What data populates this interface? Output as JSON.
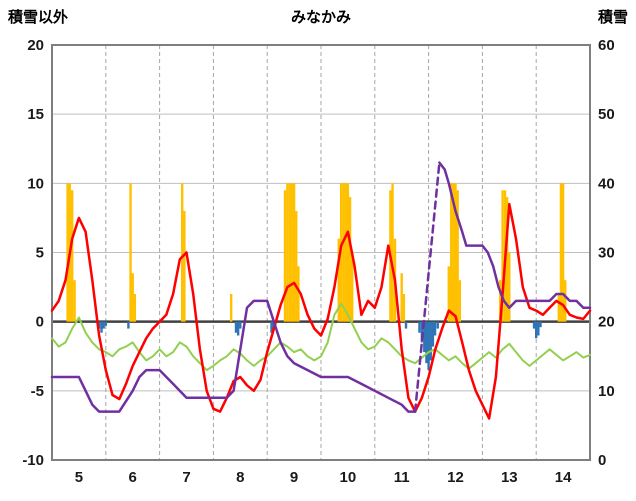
{
  "header": {
    "left_label": "積雪以外",
    "title": "みなかみ",
    "right_label": "積雪"
  },
  "chart_data": {
    "type": "combo",
    "title": "みなかみ",
    "x_axis": {
      "start": 5,
      "end": 15,
      "day_labels": [
        "5",
        "6",
        "7",
        "8",
        "9",
        "10",
        "11",
        "12",
        "13",
        "14"
      ],
      "gridline_days": [
        6,
        7,
        8,
        9,
        10,
        11,
        12,
        13,
        14
      ]
    },
    "left_axis": {
      "label": "積雪以外",
      "min": -10,
      "max": 20,
      "ticks": [
        20,
        15,
        10,
        5,
        0,
        -5,
        -10
      ]
    },
    "right_axis": {
      "label": "積雪",
      "min": 0,
      "max": 60,
      "ticks": [
        60,
        50,
        40,
        30,
        20,
        10,
        0
      ]
    },
    "grid": {
      "h_color": "#BFBFBF",
      "v_color": "#A6A6A6",
      "zero_color": "#404040",
      "frame_color": "#7F7F7F"
    },
    "series": {
      "orange_bars": {
        "type": "bar",
        "axis": "left",
        "color": "#FFC000",
        "bar_width": 2.4,
        "points": [
          [
            5.29,
            10
          ],
          [
            5.33,
            10
          ],
          [
            5.375,
            9.5
          ],
          [
            5.42,
            3
          ],
          [
            6.46,
            10
          ],
          [
            6.5,
            3.5
          ],
          [
            6.54,
            2
          ],
          [
            7.42,
            10
          ],
          [
            7.46,
            8
          ],
          [
            8.33,
            2
          ],
          [
            9.33,
            9.5
          ],
          [
            9.375,
            10
          ],
          [
            9.42,
            10
          ],
          [
            9.46,
            10
          ],
          [
            9.5,
            10
          ],
          [
            9.54,
            8
          ],
          [
            9.58,
            4
          ],
          [
            10.33,
            6
          ],
          [
            10.375,
            10
          ],
          [
            10.42,
            10
          ],
          [
            10.46,
            10
          ],
          [
            10.5,
            10
          ],
          [
            10.54,
            9
          ],
          [
            10.58,
            5
          ],
          [
            11.29,
            9.5
          ],
          [
            11.33,
            10
          ],
          [
            11.375,
            6
          ],
          [
            11.5,
            3.5
          ],
          [
            11.54,
            2
          ],
          [
            12.375,
            4
          ],
          [
            12.42,
            10
          ],
          [
            12.46,
            10
          ],
          [
            12.5,
            10
          ],
          [
            12.54,
            9.5
          ],
          [
            12.58,
            3
          ],
          [
            13.33,
            3
          ],
          [
            13.375,
            9.5
          ],
          [
            13.42,
            9.5
          ],
          [
            13.46,
            9
          ],
          [
            13.5,
            5
          ],
          [
            14.42,
            2
          ],
          [
            14.46,
            10
          ],
          [
            14.5,
            10
          ],
          [
            14.54,
            3
          ]
        ]
      },
      "blue_bars": {
        "type": "bar",
        "axis": "left",
        "color": "#2E75B6",
        "bar_width": 2.4,
        "points": [
          [
            5.875,
            -0.5
          ],
          [
            5.92,
            -0.8
          ],
          [
            5.96,
            -0.5
          ],
          [
            6.0,
            -0.3
          ],
          [
            6.42,
            -0.5
          ],
          [
            8.42,
            -0.8
          ],
          [
            8.46,
            -1.0
          ],
          [
            8.5,
            -0.5
          ],
          [
            9.08,
            -0.8
          ],
          [
            9.12,
            -0.5
          ],
          [
            11.58,
            -0.5
          ],
          [
            11.83,
            -0.8
          ],
          [
            11.875,
            -1.5
          ],
          [
            11.92,
            -2.2
          ],
          [
            11.96,
            -3.0
          ],
          [
            12.0,
            -3.5
          ],
          [
            12.04,
            -2.8
          ],
          [
            12.08,
            -1.8
          ],
          [
            12.12,
            -1.0
          ],
          [
            12.17,
            -0.5
          ],
          [
            13.96,
            -0.5
          ],
          [
            14.0,
            -1.2
          ],
          [
            14.04,
            -1.0
          ],
          [
            14.08,
            -0.4
          ]
        ]
      },
      "green_line": {
        "type": "line",
        "axis": "left",
        "color": "#92D050",
        "width": 2,
        "points": [
          [
            5.0,
            -1.2
          ],
          [
            5.125,
            -1.8
          ],
          [
            5.25,
            -1.5
          ],
          [
            5.375,
            -0.5
          ],
          [
            5.5,
            0.3
          ],
          [
            5.625,
            -0.8
          ],
          [
            5.75,
            -1.5
          ],
          [
            5.875,
            -2.0
          ],
          [
            6.0,
            -2.2
          ],
          [
            6.125,
            -2.5
          ],
          [
            6.25,
            -2.0
          ],
          [
            6.375,
            -1.8
          ],
          [
            6.5,
            -1.5
          ],
          [
            6.625,
            -2.2
          ],
          [
            6.75,
            -2.8
          ],
          [
            6.875,
            -2.5
          ],
          [
            7.0,
            -2.0
          ],
          [
            7.125,
            -2.5
          ],
          [
            7.25,
            -2.2
          ],
          [
            7.375,
            -1.5
          ],
          [
            7.5,
            -1.8
          ],
          [
            7.625,
            -2.5
          ],
          [
            7.75,
            -3.0
          ],
          [
            7.875,
            -3.5
          ],
          [
            8.0,
            -3.2
          ],
          [
            8.125,
            -2.8
          ],
          [
            8.25,
            -2.5
          ],
          [
            8.375,
            -2.0
          ],
          [
            8.5,
            -2.3
          ],
          [
            8.625,
            -2.8
          ],
          [
            8.75,
            -3.2
          ],
          [
            8.875,
            -2.8
          ],
          [
            9.0,
            -2.5
          ],
          [
            9.125,
            -2.0
          ],
          [
            9.25,
            -1.5
          ],
          [
            9.375,
            -1.8
          ],
          [
            9.5,
            -2.2
          ],
          [
            9.625,
            -2.0
          ],
          [
            9.75,
            -2.5
          ],
          [
            9.875,
            -2.8
          ],
          [
            10.0,
            -2.5
          ],
          [
            10.125,
            -1.5
          ],
          [
            10.25,
            0.5
          ],
          [
            10.375,
            1.3
          ],
          [
            10.5,
            0.5
          ],
          [
            10.625,
            -0.5
          ],
          [
            10.75,
            -1.5
          ],
          [
            10.875,
            -2.0
          ],
          [
            11.0,
            -1.8
          ],
          [
            11.125,
            -1.2
          ],
          [
            11.25,
            -1.5
          ],
          [
            11.375,
            -2.0
          ],
          [
            11.5,
            -2.5
          ],
          [
            11.625,
            -2.8
          ],
          [
            11.75,
            -3.0
          ],
          [
            11.875,
            -2.6
          ],
          [
            12.0,
            -2.2
          ],
          [
            12.125,
            -2.0
          ],
          [
            12.25,
            -2.4
          ],
          [
            12.375,
            -2.8
          ],
          [
            12.5,
            -2.5
          ],
          [
            12.625,
            -3.0
          ],
          [
            12.75,
            -3.4
          ],
          [
            12.875,
            -3.0
          ],
          [
            13.0,
            -2.6
          ],
          [
            13.125,
            -2.2
          ],
          [
            13.25,
            -2.6
          ],
          [
            13.375,
            -2.0
          ],
          [
            13.5,
            -1.6
          ],
          [
            13.625,
            -2.2
          ],
          [
            13.75,
            -2.8
          ],
          [
            13.875,
            -3.2
          ],
          [
            14.0,
            -2.8
          ],
          [
            14.125,
            -2.4
          ],
          [
            14.25,
            -2.0
          ],
          [
            14.375,
            -2.4
          ],
          [
            14.5,
            -2.8
          ],
          [
            14.625,
            -2.5
          ],
          [
            14.75,
            -2.2
          ],
          [
            14.875,
            -2.6
          ],
          [
            15.0,
            -2.4
          ]
        ]
      },
      "red_line": {
        "type": "line",
        "axis": "left",
        "color": "#FF0000",
        "width": 2.5,
        "points": [
          [
            5.0,
            0.8
          ],
          [
            5.125,
            1.5
          ],
          [
            5.25,
            3.0
          ],
          [
            5.375,
            6.0
          ],
          [
            5.5,
            7.5
          ],
          [
            5.625,
            6.5
          ],
          [
            5.75,
            3.0
          ],
          [
            5.875,
            -1.0
          ],
          [
            6.0,
            -3.5
          ],
          [
            6.125,
            -5.3
          ],
          [
            6.25,
            -5.6
          ],
          [
            6.375,
            -4.5
          ],
          [
            6.5,
            -3.2
          ],
          [
            6.625,
            -2.2
          ],
          [
            6.75,
            -1.2
          ],
          [
            6.875,
            -0.5
          ],
          [
            7.0,
            0.0
          ],
          [
            7.125,
            0.5
          ],
          [
            7.25,
            2.0
          ],
          [
            7.375,
            4.5
          ],
          [
            7.5,
            5.0
          ],
          [
            7.625,
            2.0
          ],
          [
            7.75,
            -2.0
          ],
          [
            7.875,
            -5.0
          ],
          [
            8.0,
            -6.3
          ],
          [
            8.125,
            -6.5
          ],
          [
            8.25,
            -5.5
          ],
          [
            8.375,
            -4.3
          ],
          [
            8.5,
            -4.0
          ],
          [
            8.625,
            -4.6
          ],
          [
            8.75,
            -5.0
          ],
          [
            8.875,
            -4.2
          ],
          [
            9.0,
            -2.2
          ],
          [
            9.125,
            -0.5
          ],
          [
            9.25,
            1.2
          ],
          [
            9.375,
            2.5
          ],
          [
            9.5,
            2.8
          ],
          [
            9.625,
            2.0
          ],
          [
            9.75,
            0.5
          ],
          [
            9.875,
            -0.5
          ],
          [
            10.0,
            -1.0
          ],
          [
            10.125,
            0.2
          ],
          [
            10.25,
            2.5
          ],
          [
            10.375,
            5.5
          ],
          [
            10.5,
            6.5
          ],
          [
            10.625,
            4.0
          ],
          [
            10.75,
            0.5
          ],
          [
            10.875,
            1.5
          ],
          [
            11.0,
            1.0
          ],
          [
            11.125,
            2.5
          ],
          [
            11.25,
            5.5
          ],
          [
            11.375,
            3.0
          ],
          [
            11.5,
            -2.0
          ],
          [
            11.625,
            -5.5
          ],
          [
            11.75,
            -6.5
          ],
          [
            11.875,
            -5.5
          ],
          [
            12.0,
            -4.0
          ],
          [
            12.125,
            -2.0
          ],
          [
            12.25,
            -0.5
          ],
          [
            12.375,
            0.8
          ],
          [
            12.5,
            0.4
          ],
          [
            12.625,
            -1.5
          ],
          [
            12.75,
            -3.5
          ],
          [
            12.875,
            -5.0
          ],
          [
            13.0,
            -6.0
          ],
          [
            13.125,
            -7.0
          ],
          [
            13.25,
            -4.0
          ],
          [
            13.375,
            2.0
          ],
          [
            13.5,
            8.5
          ],
          [
            13.625,
            6.0
          ],
          [
            13.75,
            2.5
          ],
          [
            13.875,
            1.0
          ],
          [
            14.0,
            0.8
          ],
          [
            14.125,
            0.5
          ],
          [
            14.25,
            1.0
          ],
          [
            14.375,
            1.5
          ],
          [
            14.5,
            1.2
          ],
          [
            14.625,
            0.5
          ],
          [
            14.75,
            0.3
          ],
          [
            14.875,
            0.2
          ],
          [
            15.0,
            0.8
          ]
        ]
      },
      "purple_line": {
        "type": "line",
        "axis": "right",
        "color": "#7030A0",
        "width": 2.5,
        "segments": [
          {
            "style": "solid",
            "points": [
              [
                5.0,
                12
              ],
              [
                5.5,
                12
              ],
              [
                5.625,
                10
              ],
              [
                5.75,
                8
              ],
              [
                5.875,
                7
              ],
              [
                6.25,
                7
              ],
              [
                6.5,
                10
              ],
              [
                6.625,
                12
              ],
              [
                6.75,
                13
              ],
              [
                7.0,
                13
              ],
              [
                7.25,
                11
              ],
              [
                7.5,
                9
              ],
              [
                8.25,
                9
              ],
              [
                8.375,
                10
              ],
              [
                8.5,
                16
              ],
              [
                8.625,
                22
              ],
              [
                8.75,
                23
              ],
              [
                9.0,
                23
              ],
              [
                9.125,
                20
              ],
              [
                9.25,
                17
              ],
              [
                9.375,
                15
              ],
              [
                9.5,
                14
              ],
              [
                9.75,
                13
              ],
              [
                10.0,
                12
              ],
              [
                10.5,
                12
              ],
              [
                10.75,
                11
              ],
              [
                11.0,
                10
              ],
              [
                11.25,
                9
              ],
              [
                11.5,
                8
              ],
              [
                11.625,
                7
              ],
              [
                11.75,
                7
              ]
            ]
          },
          {
            "style": "dashed",
            "points": [
              [
                11.75,
                7
              ],
              [
                12.2,
                43
              ]
            ]
          },
          {
            "style": "solid",
            "points": [
              [
                12.2,
                43
              ],
              [
                12.3,
                42
              ],
              [
                12.375,
                40
              ],
              [
                12.5,
                36
              ],
              [
                12.625,
                33
              ],
              [
                12.7,
                31
              ],
              [
                13.0,
                31
              ],
              [
                13.1,
                30
              ],
              [
                13.2,
                28
              ],
              [
                13.3,
                25
              ],
              [
                13.4,
                23
              ],
              [
                13.5,
                22
              ],
              [
                13.625,
                23
              ],
              [
                14.0,
                23
              ],
              [
                14.25,
                23
              ],
              [
                14.375,
                24
              ],
              [
                14.5,
                24
              ],
              [
                14.625,
                23
              ],
              [
                14.75,
                23
              ],
              [
                14.875,
                22
              ],
              [
                15.0,
                22
              ]
            ]
          }
        ]
      }
    }
  }
}
